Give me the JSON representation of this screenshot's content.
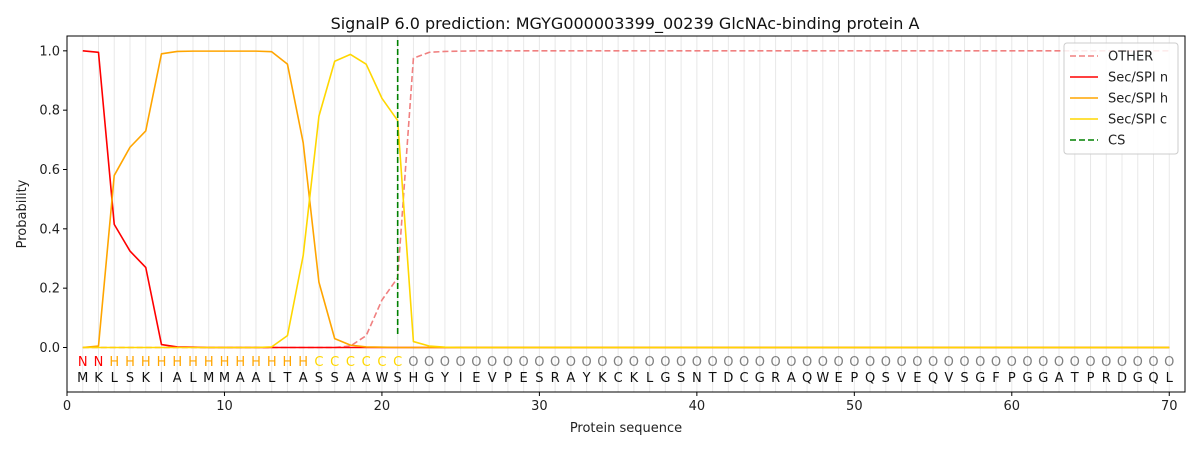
{
  "chart_data": {
    "type": "line",
    "title": "SignalP 6.0 prediction: MGYG000003399_00239 GlcNAc-binding protein A",
    "xlabel": "Protein sequence",
    "ylabel": "Probability",
    "xlim": [
      0,
      71
    ],
    "ylim": [
      -0.15,
      1.05
    ],
    "xticks": [
      0,
      10,
      20,
      30,
      40,
      50,
      60,
      70
    ],
    "yticks": [
      "0.0",
      "0.2",
      "0.4",
      "0.6",
      "0.8",
      "1.0"
    ],
    "grid": "vertical lines at each residue",
    "legend_position": "top-right",
    "sequence": [
      "M",
      "K",
      "L",
      "S",
      "K",
      "I",
      "A",
      "L",
      "M",
      "M",
      "A",
      "A",
      "L",
      "T",
      "A",
      "S",
      "S",
      "A",
      "A",
      "W",
      "S",
      "H",
      "G",
      "Y",
      "I",
      "E",
      "V",
      "P",
      "E",
      "S",
      "R",
      "A",
      "Y",
      "K",
      "C",
      "K",
      "L",
      "G",
      "S",
      "N",
      "T",
      "D",
      "C",
      "G",
      "R",
      "A",
      "Q",
      "W",
      "E",
      "P",
      "Q",
      "S",
      "V",
      "E",
      "Q",
      "V",
      "S",
      "G",
      "F",
      "P",
      "G",
      "G",
      "A",
      "T",
      "P",
      "R",
      "D",
      "G",
      "Q",
      "L"
    ],
    "region_labels": [
      "N",
      "N",
      "H",
      "H",
      "H",
      "H",
      "H",
      "H",
      "H",
      "H",
      "H",
      "H",
      "H",
      "H",
      "H",
      "C",
      "C",
      "C",
      "C",
      "C",
      "C",
      "O",
      "O",
      "O",
      "O",
      "O",
      "O",
      "O",
      "O",
      "O",
      "O",
      "O",
      "O",
      "O",
      "O",
      "O",
      "O",
      "O",
      "O",
      "O",
      "O",
      "O",
      "O",
      "O",
      "O",
      "O",
      "O",
      "O",
      "O",
      "O",
      "O",
      "O",
      "O",
      "O",
      "O",
      "O",
      "O",
      "O",
      "O",
      "O",
      "O",
      "O",
      "O",
      "O",
      "O",
      "O",
      "O",
      "O",
      "O",
      "O"
    ],
    "region_colors": {
      "N": "#ff0000",
      "H": "#ffa500",
      "C": "#ffd700",
      "O": "#808080"
    },
    "x": [
      1,
      2,
      3,
      4,
      5,
      6,
      7,
      8,
      9,
      10,
      11,
      12,
      13,
      14,
      15,
      16,
      17,
      18,
      19,
      20,
      21,
      22,
      23,
      24,
      25,
      26,
      27,
      28,
      29,
      30,
      31,
      32,
      33,
      34,
      35,
      36,
      37,
      38,
      39,
      40,
      41,
      42,
      43,
      44,
      45,
      46,
      47,
      48,
      49,
      50,
      51,
      52,
      53,
      54,
      55,
      56,
      57,
      58,
      59,
      60,
      61,
      62,
      63,
      64,
      65,
      66,
      67,
      68,
      69,
      70
    ],
    "series": [
      {
        "name": "OTHER",
        "color": "#f08080",
        "dash": "dashed",
        "values": [
          0,
          0,
          0,
          0,
          0,
          0,
          0,
          0,
          0,
          0,
          0,
          0,
          0,
          0,
          0,
          0,
          0,
          0.005,
          0.04,
          0.16,
          0.235,
          0.975,
          0.995,
          0.998,
          0.999,
          1,
          1,
          1,
          1,
          1,
          1,
          1,
          1,
          1,
          1,
          1,
          1,
          1,
          1,
          1,
          1,
          1,
          1,
          1,
          1,
          1,
          1,
          1,
          1,
          1,
          1,
          1,
          1,
          1,
          1,
          1,
          1,
          1,
          1,
          1,
          1,
          1,
          1,
          1,
          1,
          1,
          1,
          1,
          1,
          1
        ]
      },
      {
        "name": "Sec/SPI n",
        "color": "#ff0000",
        "dash": "solid",
        "values": [
          1.0,
          0.995,
          0.415,
          0.325,
          0.27,
          0.01,
          0.002,
          0.001,
          0,
          0,
          0,
          0,
          0,
          0,
          0,
          0,
          0,
          0,
          0,
          0,
          0,
          0,
          0,
          0,
          0,
          0,
          0,
          0,
          0,
          0,
          0,
          0,
          0,
          0,
          0,
          0,
          0,
          0,
          0,
          0,
          0,
          0,
          0,
          0,
          0,
          0,
          0,
          0,
          0,
          0,
          0,
          0,
          0,
          0,
          0,
          0,
          0,
          0,
          0,
          0,
          0,
          0,
          0,
          0,
          0,
          0,
          0,
          0,
          0,
          0
        ]
      },
      {
        "name": "Sec/SPI h",
        "color": "#ffa500",
        "dash": "solid",
        "values": [
          0,
          0.005,
          0.58,
          0.675,
          0.73,
          0.99,
          0.998,
          0.999,
          0.999,
          0.999,
          0.999,
          0.999,
          0.997,
          0.955,
          0.69,
          0.22,
          0.03,
          0.008,
          0.002,
          0.001,
          0,
          0,
          0,
          0,
          0,
          0,
          0,
          0,
          0,
          0,
          0,
          0,
          0,
          0,
          0,
          0,
          0,
          0,
          0,
          0,
          0,
          0,
          0,
          0,
          0,
          0,
          0,
          0,
          0,
          0,
          0,
          0,
          0,
          0,
          0,
          0,
          0,
          0,
          0,
          0,
          0,
          0,
          0,
          0,
          0,
          0,
          0,
          0,
          0,
          0
        ]
      },
      {
        "name": "Sec/SPI c",
        "color": "#ffd700",
        "dash": "solid",
        "values": [
          0,
          0,
          0,
          0,
          0,
          0,
          0,
          0,
          0,
          0,
          0,
          0,
          0.002,
          0.04,
          0.31,
          0.78,
          0.965,
          0.988,
          0.955,
          0.84,
          0.765,
          0.02,
          0.005,
          0.001,
          0,
          0,
          0,
          0,
          0,
          0,
          0,
          0,
          0,
          0,
          0,
          0,
          0,
          0,
          0,
          0,
          0,
          0,
          0,
          0,
          0,
          0,
          0,
          0,
          0,
          0,
          0,
          0,
          0,
          0,
          0,
          0,
          0,
          0,
          0,
          0,
          0,
          0,
          0,
          0,
          0,
          0,
          0,
          0,
          0,
          0
        ]
      }
    ],
    "cleavage_site": {
      "name": "CS",
      "x": 21,
      "color": "#008000",
      "dash": "dashed"
    }
  }
}
